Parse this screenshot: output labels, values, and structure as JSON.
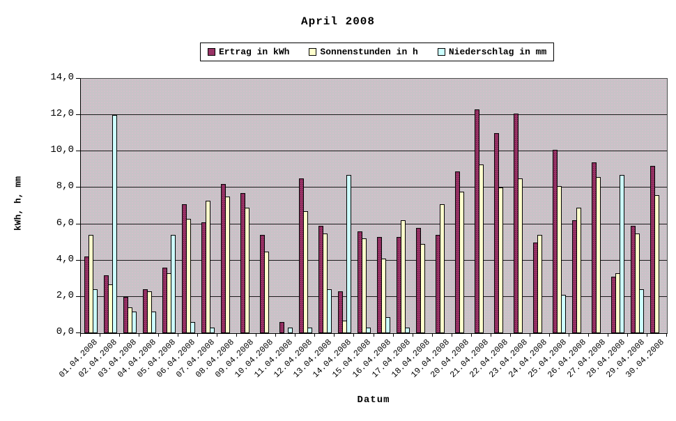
{
  "title": "April 2008",
  "chart_data": {
    "type": "bar",
    "title": "April 2008",
    "xlabel": "Datum",
    "ylabel": "kWh, h, mm",
    "ylim": [
      0,
      14
    ],
    "ytick_step": 2,
    "ytick_labels": [
      "0,0",
      "2,0",
      "4,0",
      "6,0",
      "8,0",
      "10,0",
      "12,0",
      "14,0"
    ],
    "grid": true,
    "legend_position": "top-center",
    "plot_bg_color": "#C7C3C7",
    "categories": [
      "01.04.2008",
      "02.04.2008",
      "03.04.2008",
      "04.04.2008",
      "05.04.2008",
      "06.04.2008",
      "07.04.2008",
      "08.04.2008",
      "09.04.2008",
      "10.04.2008",
      "11.04.2008",
      "12.04.2008",
      "13.04.2008",
      "14.04.2008",
      "15.04.2008",
      "16.04.2008",
      "17.04.2008",
      "18.04.2008",
      "19.04.2008",
      "20.04.2008",
      "21.04.2008",
      "22.04.2008",
      "23.04.2008",
      "24.04.2008",
      "25.04.2008",
      "26.04.2008",
      "27.04.2008",
      "28.04.2008",
      "29.04.2008",
      "30.04.2008"
    ],
    "series": [
      {
        "name": "Ertrag in kWh",
        "color": "#993366",
        "values": [
          4.2,
          3.2,
          2.0,
          2.4,
          3.6,
          7.1,
          6.1,
          8.2,
          7.7,
          5.4,
          0.6,
          8.5,
          5.9,
          2.3,
          5.6,
          5.3,
          5.3,
          5.8,
          5.4,
          8.9,
          12.3,
          11.0,
          12.1,
          5.0,
          10.1,
          6.2,
          9.4,
          3.1,
          5.9,
          9.2
        ]
      },
      {
        "name": "Sonnenstunden in h",
        "color": "#FFFFCC",
        "values": [
          5.4,
          2.7,
          1.4,
          2.3,
          3.3,
          6.3,
          7.3,
          7.5,
          6.9,
          4.5,
          0,
          6.7,
          5.5,
          0.7,
          5.2,
          4.1,
          6.2,
          4.9,
          7.1,
          7.8,
          9.3,
          8.0,
          8.5,
          5.4,
          8.1,
          6.9,
          8.6,
          3.3,
          5.5,
          7.6
        ]
      },
      {
        "name": "Niederschlag in mm",
        "color": "#CCFFFF",
        "values": [
          2.4,
          12.0,
          1.2,
          1.2,
          5.4,
          0.6,
          0.3,
          0,
          0,
          0,
          0.3,
          0.3,
          2.4,
          8.7,
          0.3,
          0.9,
          0.3,
          0,
          0,
          0,
          0,
          0,
          0,
          0,
          2.1,
          0,
          0,
          8.7,
          2.4,
          0
        ]
      }
    ]
  }
}
